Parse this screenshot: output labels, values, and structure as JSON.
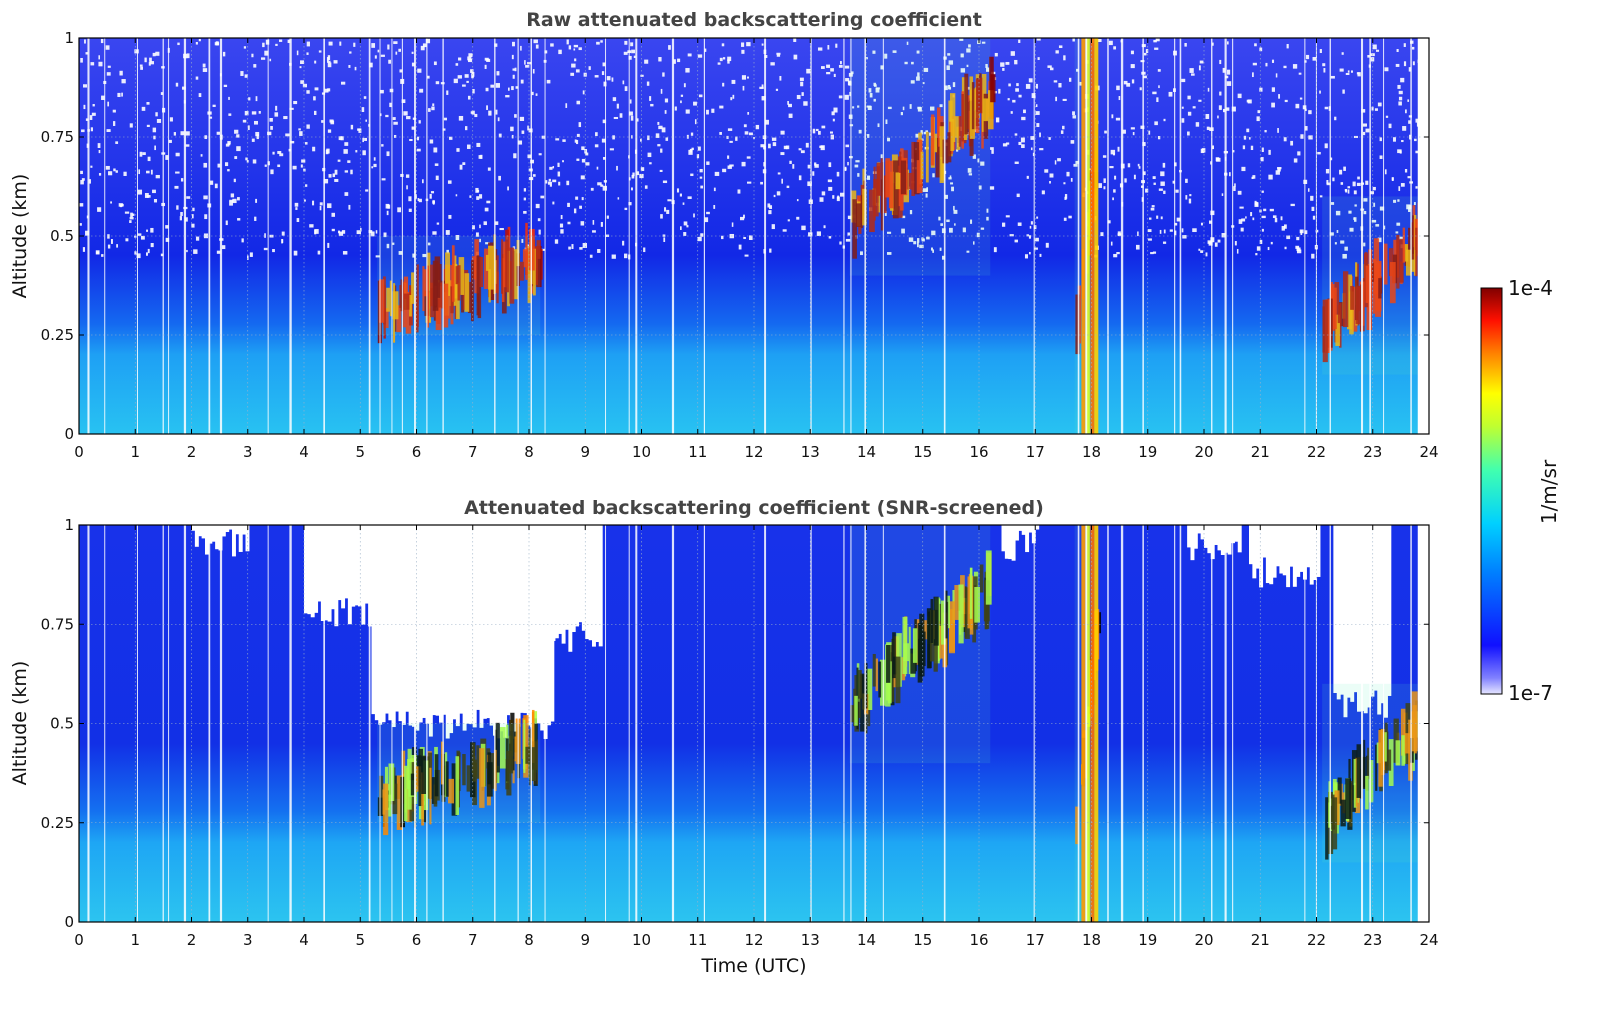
{
  "chart_data": [
    {
      "type": "heatmap",
      "title": "Raw attenuated backscattering coefficient",
      "xlabel": "",
      "ylabel": "Altitude (km)",
      "xlim": [
        0,
        24
      ],
      "ylim": [
        0,
        1
      ],
      "x_ticks": [
        "0",
        "1",
        "2",
        "3",
        "4",
        "5",
        "6",
        "7",
        "8",
        "9",
        "10",
        "11",
        "12",
        "13",
        "14",
        "15",
        "16",
        "17",
        "18",
        "19",
        "20",
        "21",
        "22",
        "23",
        "24"
      ],
      "y_ticks": [
        "0",
        "0.25",
        "0.5",
        "0.75",
        "1"
      ],
      "grid": true,
      "features": [
        {
          "description_time_utc": [
            5.3,
            8.2
          ],
          "altitude_km": [
            0.25,
            0.5
          ],
          "level": "high"
        },
        {
          "description_time_utc": [
            13.7,
            16.2
          ],
          "altitude_km": [
            0.4,
            1.0
          ],
          "level": "high"
        },
        {
          "description_time_utc": [
            17.7,
            18.1
          ],
          "altitude_km": [
            0.0,
            1.0
          ],
          "level": "high"
        },
        {
          "description_time_utc": [
            22.1,
            23.8
          ],
          "altitude_km": [
            0.15,
            0.6
          ],
          "level": "high"
        }
      ]
    },
    {
      "type": "heatmap",
      "title": "Attenuated backscattering coefficient (SNR-screened)",
      "xlabel": "Time (UTC)",
      "ylabel": "Altitude (km)",
      "xlim": [
        0,
        24
      ],
      "ylim": [
        0,
        1
      ],
      "x_ticks": [
        "0",
        "1",
        "2",
        "3",
        "4",
        "5",
        "6",
        "7",
        "8",
        "9",
        "10",
        "11",
        "12",
        "13",
        "14",
        "15",
        "16",
        "17",
        "18",
        "19",
        "20",
        "21",
        "22",
        "23",
        "24"
      ],
      "y_ticks": [
        "0",
        "0.25",
        "0.5",
        "0.75",
        "1"
      ],
      "grid": true
    }
  ],
  "colorbar": {
    "label": "1/m/sr",
    "max_label": "1e-4",
    "min_label": "1e-7",
    "scale": "log",
    "range": [
      1e-07,
      0.0001
    ],
    "colormap": "jet"
  },
  "colors": {
    "background_low": "#0a18e0",
    "boundary_layer": "#22b4f0",
    "cloud": "#9a0a0a",
    "saturated": "#000000"
  }
}
